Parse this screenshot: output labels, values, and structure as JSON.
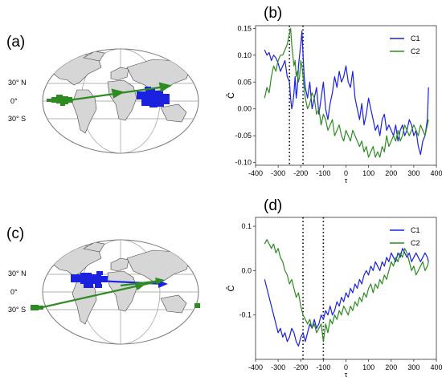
{
  "panels": {
    "a": "(a)",
    "b": "(b)",
    "c": "(c)",
    "d": "(d)"
  },
  "maps": [
    {
      "id": "a",
      "lat_labels": [
        "30° N",
        "0°",
        "30° S"
      ],
      "colors": {
        "C1": "#1a22e0",
        "C2": "#2e8b22"
      }
    },
    {
      "id": "c",
      "lat_labels": [
        "30° N",
        "0°",
        "30° S"
      ],
      "colors": {
        "C1": "#1a22e0",
        "C2": "#2e8b22"
      }
    }
  ],
  "chart_data": [
    {
      "type": "line",
      "panel": "(b)",
      "xlabel": "τ",
      "ylabel": "Ĉ",
      "xlim": [
        -400,
        400
      ],
      "ylim": [
        -0.105,
        0.155
      ],
      "xticks": [
        -400,
        -300,
        -200,
        -100,
        0,
        100,
        200,
        300,
        400
      ],
      "yticks": [
        -0.1,
        -0.05,
        0.0,
        0.05,
        0.1,
        0.15
      ],
      "ytick_labels": [
        "-0.10",
        "-0.05",
        "0.00",
        "0.05",
        "0.10",
        "0.15"
      ],
      "vlines": [
        -250,
        -190
      ],
      "legend": "top-right",
      "series": [
        {
          "name": "C1",
          "color": "#1a22e0",
          "x": [
            -360,
            -350,
            -340,
            -330,
            -320,
            -310,
            -300,
            -290,
            -280,
            -270,
            -260,
            -250,
            -245,
            -240,
            -235,
            -230,
            -225,
            -220,
            -215,
            -210,
            -205,
            -200,
            -195,
            -190,
            -185,
            -180,
            -170,
            -160,
            -150,
            -140,
            -130,
            -120,
            -110,
            -100,
            -90,
            -80,
            -70,
            -60,
            -50,
            -40,
            -30,
            -20,
            -10,
            0,
            10,
            20,
            30,
            40,
            50,
            60,
            70,
            80,
            90,
            100,
            110,
            120,
            130,
            140,
            150,
            160,
            170,
            180,
            190,
            200,
            210,
            220,
            230,
            240,
            250,
            260,
            270,
            280,
            290,
            300,
            310,
            320,
            330,
            340,
            350,
            360,
            365
          ],
          "y": [
            0.11,
            0.1,
            0.105,
            0.09,
            0.1,
            0.095,
            0.085,
            0.07,
            0.08,
            0.09,
            0.06,
            0.05,
            0.02,
            0.0,
            0.01,
            0.03,
            0.06,
            0.02,
            0.04,
            0.08,
            0.1,
            0.12,
            0.145,
            0.1,
            0.06,
            0.04,
            0.02,
            0.05,
            0.0,
            0.02,
            0.04,
            -0.01,
            0.02,
            0.05,
            0.0,
            -0.02,
            0.01,
            0.03,
            0.06,
            0.04,
            0.07,
            0.05,
            0.06,
            0.08,
            0.05,
            0.04,
            0.07,
            0.02,
            0.0,
            -0.02,
            0.01,
            -0.03,
            -0.01,
            0.02,
            0.0,
            -0.02,
            -0.04,
            -0.03,
            -0.05,
            -0.02,
            -0.01,
            -0.04,
            -0.03,
            -0.04,
            -0.05,
            -0.03,
            -0.06,
            -0.04,
            -0.03,
            -0.05,
            -0.04,
            -0.02,
            -0.03,
            -0.05,
            -0.04,
            -0.07,
            -0.085,
            -0.06,
            -0.05,
            -0.02,
            0.04
          ]
        },
        {
          "name": "C2",
          "color": "#2e8b22",
          "x": [
            -360,
            -350,
            -340,
            -330,
            -320,
            -310,
            -300,
            -290,
            -280,
            -270,
            -260,
            -250,
            -245,
            -240,
            -235,
            -230,
            -225,
            -220,
            -215,
            -210,
            -205,
            -200,
            -195,
            -190,
            -185,
            -180,
            -170,
            -160,
            -150,
            -140,
            -130,
            -120,
            -110,
            -100,
            -90,
            -80,
            -70,
            -60,
            -50,
            -40,
            -30,
            -20,
            -10,
            0,
            10,
            20,
            30,
            40,
            50,
            60,
            70,
            80,
            90,
            100,
            110,
            120,
            130,
            140,
            150,
            160,
            170,
            180,
            190,
            200,
            210,
            220,
            230,
            240,
            250,
            260,
            270,
            280,
            290,
            300,
            310,
            320,
            330,
            340,
            350,
            360,
            365
          ],
          "y": [
            0.02,
            0.04,
            0.03,
            0.06,
            0.08,
            0.07,
            0.09,
            0.1,
            0.1,
            0.11,
            0.12,
            0.14,
            0.15,
            0.12,
            0.1,
            0.08,
            0.09,
            0.06,
            0.07,
            0.05,
            0.06,
            0.09,
            0.08,
            0.06,
            0.04,
            0.02,
            0.0,
            0.01,
            0.03,
            0.02,
            -0.01,
            0.0,
            -0.03,
            -0.01,
            -0.02,
            -0.04,
            -0.03,
            -0.02,
            -0.05,
            -0.04,
            -0.03,
            -0.05,
            -0.06,
            -0.04,
            -0.05,
            -0.06,
            -0.04,
            -0.05,
            -0.06,
            -0.07,
            -0.06,
            -0.08,
            -0.07,
            -0.09,
            -0.08,
            -0.07,
            -0.09,
            -0.08,
            -0.09,
            -0.07,
            -0.08,
            -0.05,
            -0.07,
            -0.06,
            -0.05,
            -0.06,
            -0.04,
            -0.06,
            -0.05,
            -0.03,
            -0.04,
            -0.05,
            -0.04,
            -0.03,
            -0.04,
            -0.05,
            -0.03,
            -0.04,
            -0.05,
            -0.03,
            -0.02
          ]
        }
      ]
    },
    {
      "type": "line",
      "panel": "(d)",
      "xlabel": "τ",
      "ylabel": "Ĉ",
      "xlim": [
        -400,
        400
      ],
      "ylim": [
        -0.2,
        0.12
      ],
      "xticks": [
        -400,
        -300,
        -200,
        -100,
        0,
        100,
        200,
        300,
        400
      ],
      "yticks": [
        -0.1,
        0.0,
        0.1
      ],
      "ytick_labels": [
        "-0.1",
        "0.0",
        "0.1"
      ],
      "vlines": [
        -190,
        -100
      ],
      "legend": "top-right",
      "series": [
        {
          "name": "C1",
          "color": "#1a22e0",
          "x": [
            -360,
            -350,
            -340,
            -330,
            -320,
            -310,
            -300,
            -290,
            -280,
            -270,
            -260,
            -250,
            -240,
            -230,
            -220,
            -210,
            -200,
            -190,
            -180,
            -170,
            -160,
            -150,
            -140,
            -130,
            -120,
            -110,
            -100,
            -90,
            -80,
            -70,
            -60,
            -50,
            -40,
            -30,
            -20,
            -10,
            0,
            10,
            20,
            30,
            40,
            50,
            60,
            70,
            80,
            90,
            100,
            110,
            120,
            130,
            140,
            150,
            160,
            170,
            180,
            190,
            200,
            210,
            220,
            230,
            240,
            250,
            260,
            270,
            280,
            290,
            300,
            310,
            320,
            330,
            340,
            350,
            360,
            365
          ],
          "y": [
            -0.02,
            -0.04,
            -0.06,
            -0.08,
            -0.1,
            -0.12,
            -0.14,
            -0.13,
            -0.15,
            -0.14,
            -0.16,
            -0.15,
            -0.13,
            -0.14,
            -0.16,
            -0.17,
            -0.15,
            -0.14,
            -0.16,
            -0.14,
            -0.12,
            -0.13,
            -0.11,
            -0.13,
            -0.12,
            -0.1,
            -0.11,
            -0.09,
            -0.1,
            -0.08,
            -0.1,
            -0.09,
            -0.07,
            -0.08,
            -0.06,
            -0.07,
            -0.05,
            -0.06,
            -0.04,
            -0.05,
            -0.03,
            -0.04,
            -0.02,
            -0.03,
            -0.01,
            0.0,
            -0.01,
            0.01,
            0.0,
            0.02,
            0.01,
            0.0,
            0.02,
            0.01,
            0.03,
            0.02,
            0.04,
            0.03,
            0.02,
            0.04,
            0.03,
            0.05,
            0.04,
            0.03,
            0.04,
            0.02,
            0.03,
            0.04,
            0.03,
            0.02,
            0.03,
            0.04,
            0.03,
            0.02
          ]
        },
        {
          "name": "C2",
          "color": "#2e8b22",
          "x": [
            -360,
            -350,
            -340,
            -330,
            -320,
            -310,
            -300,
            -290,
            -280,
            -270,
            -260,
            -250,
            -240,
            -230,
            -220,
            -210,
            -200,
            -190,
            -180,
            -170,
            -160,
            -150,
            -140,
            -130,
            -120,
            -110,
            -100,
            -90,
            -80,
            -70,
            -60,
            -50,
            -40,
            -30,
            -20,
            -10,
            0,
            10,
            20,
            30,
            40,
            50,
            60,
            70,
            80,
            90,
            100,
            110,
            120,
            130,
            140,
            150,
            160,
            170,
            180,
            190,
            200,
            210,
            220,
            230,
            240,
            250,
            260,
            270,
            280,
            290,
            300,
            310,
            320,
            330,
            340,
            350,
            360,
            365
          ],
          "y": [
            0.06,
            0.07,
            0.06,
            0.05,
            0.06,
            0.04,
            0.05,
            0.03,
            0.02,
            0.0,
            -0.01,
            -0.03,
            -0.02,
            -0.04,
            -0.06,
            -0.05,
            -0.08,
            -0.1,
            -0.11,
            -0.12,
            -0.11,
            -0.13,
            -0.12,
            -0.14,
            -0.13,
            -0.12,
            -0.16,
            -0.12,
            -0.14,
            -0.11,
            -0.12,
            -0.1,
            -0.11,
            -0.09,
            -0.1,
            -0.08,
            -0.09,
            -0.1,
            -0.08,
            -0.09,
            -0.07,
            -0.08,
            -0.06,
            -0.07,
            -0.05,
            -0.06,
            -0.04,
            -0.03,
            -0.05,
            -0.03,
            -0.04,
            -0.02,
            -0.03,
            -0.01,
            -0.02,
            0.0,
            0.02,
            0.01,
            0.03,
            0.02,
            0.04,
            0.03,
            0.05,
            0.04,
            0.02,
            0.0,
            0.01,
            -0.01,
            0.0,
            0.01,
            0.02,
            0.0,
            0.01,
            0.02
          ]
        }
      ]
    }
  ]
}
